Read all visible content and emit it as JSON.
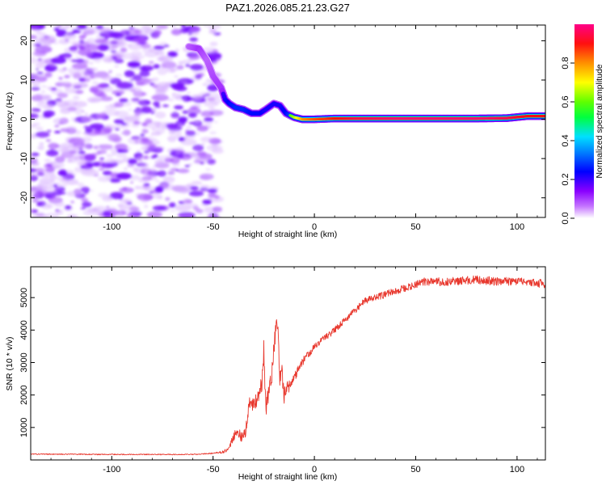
{
  "title": "PAZ1.2026.085.21.23.G27",
  "colors": {
    "snr_line": "#e8382e",
    "frame": "#000000"
  },
  "chart_data": [
    {
      "type": "heatmap",
      "name": "spectrogram",
      "xlabel": "Height of straight line (km)",
      "ylabel": "Frequency (Hz)",
      "xlim": [
        -140,
        114
      ],
      "ylim": [
        -25,
        24
      ],
      "xticks": [
        -100,
        -50,
        0,
        50,
        100
      ],
      "yticks": [
        -20,
        -10,
        0,
        10,
        20
      ],
      "xtick_labels": [
        "-100",
        "-50",
        "0",
        "50",
        "100"
      ],
      "ytick_labels": [
        "-20",
        "-10",
        "0",
        "10",
        "20"
      ],
      "colorbar": {
        "label": "Normalized spectral amplitude",
        "range": [
          0,
          1
        ],
        "ticks": [
          0.0,
          0.2,
          0.4,
          0.6,
          0.8
        ],
        "tick_labels": [
          "0.0",
          "0.2",
          "0.4",
          "0.6",
          "0.8"
        ]
      },
      "noise_region_x": [
        -140,
        -49
      ],
      "ridge": {
        "x": [
          -62,
          -57,
          -53,
          -50,
          -46,
          -44,
          -42,
          -39,
          -35,
          -31,
          -27,
          -24,
          -20,
          -17,
          -14,
          -10,
          -6,
          0,
          10,
          20,
          40,
          60,
          80,
          95,
          105,
          114
        ],
        "y": [
          18.5,
          18.0,
          15.0,
          11.0,
          8.0,
          5.0,
          4.0,
          3.0,
          2.5,
          1.5,
          1.5,
          2.5,
          4.0,
          3.5,
          1.5,
          0.5,
          0.0,
          0.0,
          0.2,
          0.2,
          0.2,
          0.2,
          0.2,
          0.3,
          0.8,
          0.8
        ],
        "amplitude": [
          0.25,
          0.35,
          0.25,
          0.3,
          0.35,
          0.45,
          0.5,
          0.55,
          0.55,
          0.5,
          0.5,
          0.45,
          0.45,
          0.45,
          0.5,
          0.65,
          0.8,
          0.85,
          0.9,
          0.95,
          0.98,
          0.98,
          0.98,
          0.95,
          0.9,
          0.9
        ]
      }
    },
    {
      "type": "line",
      "name": "snr",
      "xlabel": "Height of straight line (km)",
      "ylabel": "SNR (10 * v/v)",
      "xlim": [
        -140,
        114
      ],
      "ylim": [
        0,
        5950
      ],
      "xticks": [
        -100,
        -50,
        0,
        50,
        100
      ],
      "yticks": [
        1000,
        2000,
        3000,
        4000,
        5000
      ],
      "xtick_labels": [
        "-100",
        "-50",
        "0",
        "50",
        "100"
      ],
      "ytick_labels": [
        "1000",
        "2000",
        "3000",
        "4000",
        "5000"
      ],
      "series": [
        {
          "name": "SNR",
          "x": [
            -140,
            -100,
            -60,
            -50,
            -45,
            -42,
            -40,
            -38,
            -36,
            -34,
            -33,
            -32,
            -30,
            -28,
            -26,
            -25,
            -24,
            -22,
            -21,
            -20,
            -19,
            -18,
            -17,
            -16,
            -15,
            -14,
            -12,
            -10,
            -8,
            -6,
            -4,
            -2,
            0,
            5,
            10,
            15,
            20,
            25,
            30,
            35,
            40,
            45,
            50,
            55,
            60,
            70,
            80,
            90,
            100,
            110,
            114
          ],
          "values": [
            180,
            170,
            170,
            200,
            250,
            350,
            700,
            900,
            700,
            850,
            1300,
            1800,
            1700,
            1900,
            2300,
            3400,
            1600,
            2200,
            2600,
            3500,
            4000,
            4100,
            2500,
            2800,
            1900,
            2200,
            2300,
            2500,
            2800,
            3000,
            3200,
            3300,
            3500,
            3750,
            4000,
            4300,
            4600,
            4900,
            5000,
            5100,
            5200,
            5300,
            5400,
            5500,
            5480,
            5500,
            5550,
            5500,
            5500,
            5450,
            5400
          ],
          "noise": [
            15,
            15,
            15,
            20,
            40,
            80,
            150,
            150,
            150,
            180,
            200,
            200,
            250,
            250,
            300,
            350,
            300,
            300,
            300,
            300,
            300,
            300,
            300,
            250,
            250,
            200,
            180,
            160,
            140,
            130,
            120,
            110,
            100,
            100,
            100,
            100,
            100,
            100,
            100,
            110,
            110,
            120,
            120,
            130,
            130,
            130,
            130,
            130,
            130,
            130,
            130
          ]
        }
      ]
    }
  ]
}
